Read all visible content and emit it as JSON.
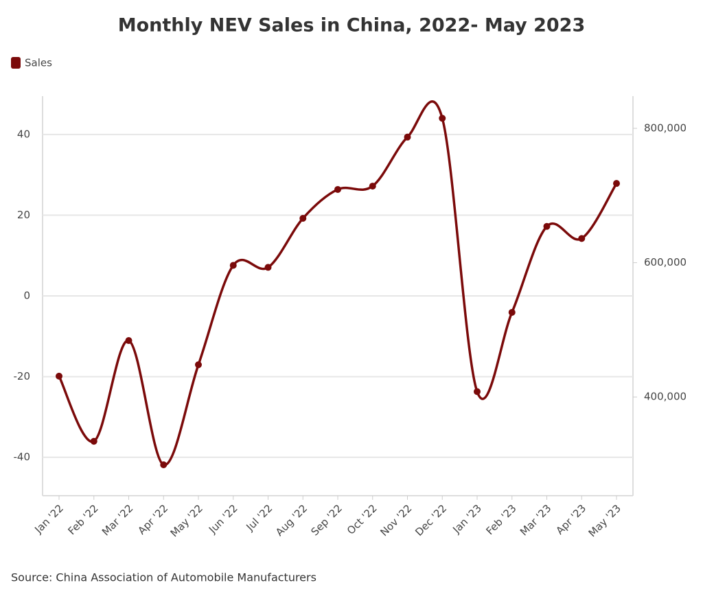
{
  "chart_data": {
    "type": "line",
    "title": "Monthly NEV Sales in China, 2022- May 2023",
    "source": "Source: China Association of Automobile Manufacturers",
    "categories": [
      "Jan '22",
      "Feb '22",
      "Mar '22",
      "Apr '22",
      "May '22",
      "Jun '22",
      "Jul '22",
      "Aug '22",
      "Sep '22",
      "Oct '22",
      "Nov '22",
      "Dec '22",
      "Jan '23",
      "Feb '23",
      "Mar '23",
      "Apr '23",
      "May '23"
    ],
    "series": [
      {
        "name": "Sales",
        "color": "#7b0a0a",
        "axis": "y2",
        "values": [
          431000,
          334000,
          484000,
          299000,
          448000,
          596000,
          593000,
          666000,
          709000,
          714000,
          787000,
          815000,
          408000,
          526000,
          654000,
          636000,
          718000
        ]
      }
    ],
    "ylim": [
      -49.5,
      49.5
    ],
    "yticks": [
      -40,
      -20,
      0,
      20,
      40
    ],
    "y2lim": [
      253000,
      848000
    ],
    "y2ticks": [
      {
        "value": 400000,
        "label": "400,000"
      },
      {
        "value": 600000,
        "label": "600,000"
      },
      {
        "value": 800000,
        "label": "800,000"
      }
    ],
    "grid": true,
    "legend": "top-left"
  }
}
